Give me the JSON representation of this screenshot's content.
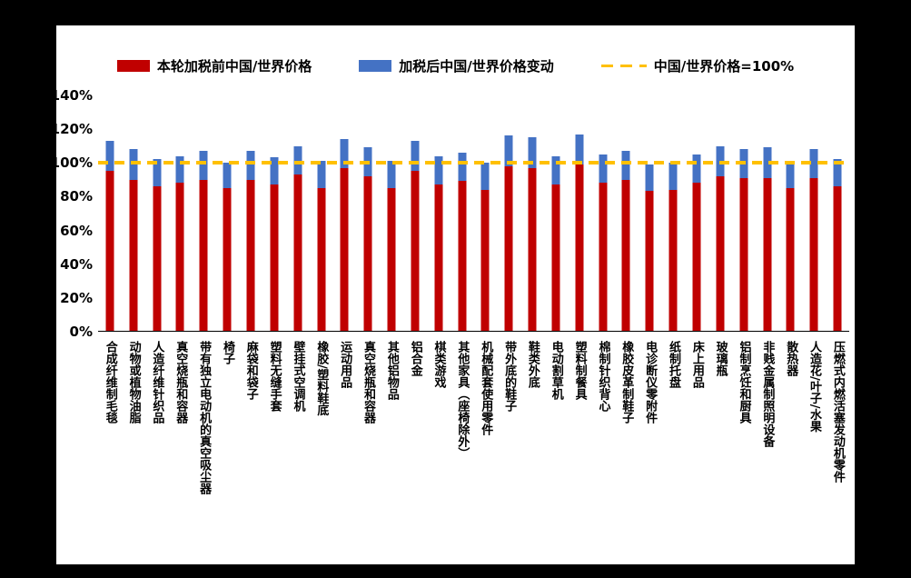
{
  "chart_data": {
    "type": "bar",
    "subtype": "stacked",
    "legend": [
      "本轮加税前中国/世界价格",
      "加税后中国/世界价格变动",
      "中国/世界价格=100%"
    ],
    "colors": {
      "before": "#C00000",
      "change": "#4472C4",
      "reference_line": "#FFC000",
      "background": "#000000",
      "plot_background": "#FFFFFF"
    },
    "ylim": [
      0,
      140
    ],
    "y_ticks": [
      "0%",
      "20%",
      "40%",
      "60%",
      "80%",
      "100%",
      "120%",
      "140%"
    ],
    "reference_value": 100,
    "grid": "off",
    "legend_position": "top",
    "categories": [
      "合成纤维制毛毯",
      "动物或植物油脂",
      "人造纤维针织品",
      "真空烧瓶和容器",
      "带有独立电动机的真空吸尘器",
      "椅子",
      "麻袋和袋子",
      "塑料无缝手套",
      "壁挂式空调机",
      "橡胶/塑料鞋底",
      "运动用品",
      "真空烧瓶和容器",
      "其他铝物品",
      "铝合金",
      "棋类游戏",
      "其他家具（座椅除外）",
      "机械配套使用零件",
      "带外底的鞋子",
      "鞋类外底",
      "电动割草机",
      "塑料制餐具",
      "棉制针织背心",
      "橡胶皮革制鞋子",
      "电诊断仪零附件",
      "纸制托盘",
      "床上用品",
      "玻璃瓶",
      "铝制烹饪和厨具",
      "非贱金属制照明设备",
      "散热器",
      "人造花/叶子/水果",
      "压燃式内燃活塞发动机零件"
    ],
    "series": [
      {
        "name": "本轮加税前中国/世界价格",
        "values": [
          95,
          90,
          86,
          88,
          90,
          85,
          90,
          87,
          93,
          85,
          97,
          92,
          85,
          95,
          87,
          89,
          84,
          98,
          97,
          87,
          99,
          88,
          90,
          83,
          84,
          88,
          92,
          91,
          91,
          85,
          91,
          86
        ]
      },
      {
        "name": "加税后中国/世界价格变动",
        "values": [
          18,
          18,
          16,
          16,
          17,
          15,
          17,
          16,
          17,
          16,
          17,
          17,
          16,
          18,
          17,
          17,
          16,
          18,
          18,
          17,
          18,
          17,
          17,
          16,
          16,
          17,
          18,
          17,
          18,
          16,
          17,
          16
        ]
      }
    ],
    "totals_after_tariff": [
      113,
      108,
      102,
      104,
      107,
      100,
      107,
      103,
      110,
      101,
      114,
      109,
      101,
      113,
      104,
      106,
      100,
      116,
      115,
      104,
      117,
      105,
      107,
      99,
      100,
      105,
      110,
      108,
      109,
      101,
      108,
      102
    ]
  }
}
